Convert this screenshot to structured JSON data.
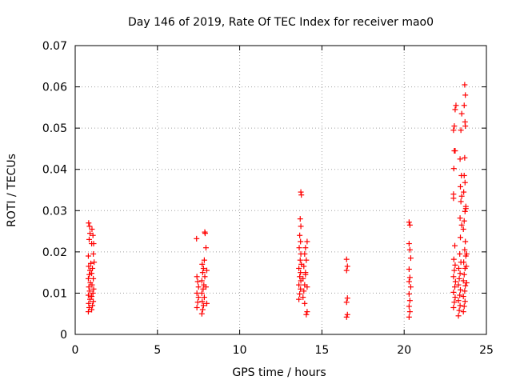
{
  "chart_data": {
    "type": "scatter",
    "title": "Day 146 of 2019, Rate Of TEC Index for receiver mao0",
    "xlabel": "GPS time / hours",
    "ylabel": "ROTI / TECUs",
    "xlim": [
      0,
      25
    ],
    "ylim": [
      0,
      0.07
    ],
    "xticks": [
      0,
      5,
      10,
      15,
      20,
      25
    ],
    "yticks": [
      0,
      0.01,
      0.02,
      0.03,
      0.04,
      0.05,
      0.06,
      0.07
    ],
    "xtick_labels": [
      "0",
      "5",
      "10",
      "15",
      "20",
      "25"
    ],
    "ytick_labels": [
      "0",
      "0.01",
      "0.02",
      "0.03",
      "0.04",
      "0.05",
      "0.06",
      "0.07"
    ],
    "grid": true,
    "marker": "+",
    "color": "#ff0000",
    "series": [
      {
        "name": "ROTI",
        "points": [
          [
            0.8,
            0.0055
          ],
          [
            0.85,
            0.0065
          ],
          [
            0.82,
            0.0075
          ],
          [
            0.9,
            0.0085
          ],
          [
            0.8,
            0.0095
          ],
          [
            0.88,
            0.0105
          ],
          [
            0.83,
            0.0115
          ],
          [
            0.92,
            0.0125
          ],
          [
            0.8,
            0.0135
          ],
          [
            0.86,
            0.0145
          ],
          [
            0.9,
            0.0155
          ],
          [
            0.82,
            0.0165
          ],
          [
            0.95,
            0.0172
          ],
          [
            0.8,
            0.019
          ],
          [
            0.85,
            0.023
          ],
          [
            0.9,
            0.0245
          ],
          [
            0.82,
            0.027
          ],
          [
            0.87,
            0.0262
          ],
          [
            1.0,
            0.006
          ],
          [
            1.05,
            0.007
          ],
          [
            1.1,
            0.008
          ],
          [
            1.0,
            0.0092
          ],
          [
            1.08,
            0.01
          ],
          [
            1.12,
            0.011
          ],
          [
            1.02,
            0.012
          ],
          [
            1.1,
            0.0135
          ],
          [
            1.0,
            0.0148
          ],
          [
            1.05,
            0.016
          ],
          [
            1.15,
            0.0175
          ],
          [
            1.1,
            0.0195
          ],
          [
            1.0,
            0.022
          ],
          [
            1.08,
            0.024
          ],
          [
            1.02,
            0.0255
          ],
          [
            1.12,
            0.022
          ],
          [
            7.4,
            0.0065
          ],
          [
            7.45,
            0.0078
          ],
          [
            7.5,
            0.009
          ],
          [
            7.4,
            0.01
          ],
          [
            7.5,
            0.0115
          ],
          [
            7.45,
            0.0128
          ],
          [
            7.4,
            0.014
          ],
          [
            7.38,
            0.0232
          ],
          [
            7.7,
            0.005
          ],
          [
            7.75,
            0.006
          ],
          [
            7.8,
            0.007
          ],
          [
            7.72,
            0.008
          ],
          [
            7.85,
            0.009
          ],
          [
            7.7,
            0.01
          ],
          [
            7.78,
            0.011
          ],
          [
            7.82,
            0.012
          ],
          [
            7.7,
            0.013
          ],
          [
            7.88,
            0.014
          ],
          [
            7.75,
            0.015
          ],
          [
            7.8,
            0.016
          ],
          [
            7.72,
            0.017
          ],
          [
            7.85,
            0.018
          ],
          [
            7.9,
            0.0245
          ],
          [
            7.88,
            0.0248
          ],
          [
            7.95,
            0.021
          ],
          [
            8.0,
            0.0075
          ],
          [
            7.95,
            0.0115
          ],
          [
            8.0,
            0.0155
          ],
          [
            13.6,
            0.0085
          ],
          [
            13.65,
            0.0098
          ],
          [
            13.7,
            0.011
          ],
          [
            13.6,
            0.012
          ],
          [
            13.72,
            0.013
          ],
          [
            13.65,
            0.014
          ],
          [
            13.7,
            0.015
          ],
          [
            13.6,
            0.016
          ],
          [
            13.75,
            0.017
          ],
          [
            13.68,
            0.018
          ],
          [
            13.72,
            0.0195
          ],
          [
            13.62,
            0.021
          ],
          [
            13.7,
            0.0225
          ],
          [
            13.65,
            0.024
          ],
          [
            13.72,
            0.0262
          ],
          [
            13.68,
            0.028
          ],
          [
            13.75,
            0.0338
          ],
          [
            13.72,
            0.0345
          ],
          [
            13.85,
            0.009
          ],
          [
            13.9,
            0.0105
          ],
          [
            13.95,
            0.012
          ],
          [
            13.85,
            0.0135
          ],
          [
            14.0,
            0.015
          ],
          [
            13.9,
            0.0165
          ],
          [
            14.05,
            0.018
          ],
          [
            13.95,
            0.0195
          ],
          [
            14.0,
            0.021
          ],
          [
            14.1,
            0.0225
          ],
          [
            14.05,
            0.0048
          ],
          [
            14.1,
            0.0055
          ],
          [
            13.95,
            0.0075
          ],
          [
            14.1,
            0.0115
          ],
          [
            14.0,
            0.0145
          ],
          [
            16.5,
            0.0042
          ],
          [
            16.55,
            0.0048
          ],
          [
            16.5,
            0.0078
          ],
          [
            16.55,
            0.0088
          ],
          [
            16.5,
            0.0155
          ],
          [
            16.55,
            0.0165
          ],
          [
            16.5,
            0.0182
          ],
          [
            20.3,
            0.0042
          ],
          [
            20.35,
            0.0055
          ],
          [
            20.3,
            0.0068
          ],
          [
            20.35,
            0.0082
          ],
          [
            20.3,
            0.0098
          ],
          [
            20.4,
            0.0115
          ],
          [
            20.3,
            0.0128
          ],
          [
            20.35,
            0.0138
          ],
          [
            20.3,
            0.0158
          ],
          [
            20.4,
            0.0185
          ],
          [
            20.35,
            0.0205
          ],
          [
            20.3,
            0.022
          ],
          [
            20.35,
            0.0265
          ],
          [
            20.3,
            0.0272
          ],
          [
            23.0,
            0.0065
          ],
          [
            23.05,
            0.0078
          ],
          [
            23.1,
            0.009
          ],
          [
            23.0,
            0.0102
          ],
          [
            23.08,
            0.0115
          ],
          [
            23.12,
            0.0128
          ],
          [
            23.0,
            0.014
          ],
          [
            23.05,
            0.0155
          ],
          [
            23.1,
            0.0168
          ],
          [
            23.02,
            0.0182
          ],
          [
            23.08,
            0.0215
          ],
          [
            23.0,
            0.034
          ],
          [
            23.05,
            0.0445
          ],
          [
            23.1,
            0.0445
          ],
          [
            23.0,
            0.0495
          ],
          [
            23.05,
            0.0505
          ],
          [
            23.1,
            0.0545
          ],
          [
            23.15,
            0.0555
          ],
          [
            23.02,
            0.0402
          ],
          [
            23.0,
            0.033
          ],
          [
            23.3,
            0.0045
          ],
          [
            23.35,
            0.0058
          ],
          [
            23.4,
            0.007
          ],
          [
            23.3,
            0.0082
          ],
          [
            23.38,
            0.0095
          ],
          [
            23.42,
            0.0108
          ],
          [
            23.3,
            0.012
          ],
          [
            23.35,
            0.0135
          ],
          [
            23.4,
            0.0148
          ],
          [
            23.32,
            0.016
          ],
          [
            23.45,
            0.0175
          ],
          [
            23.38,
            0.0195
          ],
          [
            23.42,
            0.0235
          ],
          [
            23.5,
            0.0265
          ],
          [
            23.4,
            0.0282
          ],
          [
            23.45,
            0.0322
          ],
          [
            23.5,
            0.0335
          ],
          [
            23.42,
            0.0358
          ],
          [
            23.48,
            0.0385
          ],
          [
            23.4,
            0.0425
          ],
          [
            23.45,
            0.0495
          ],
          [
            23.5,
            0.0535
          ],
          [
            23.6,
            0.0055
          ],
          [
            23.65,
            0.0068
          ],
          [
            23.7,
            0.008
          ],
          [
            23.6,
            0.0092
          ],
          [
            23.68,
            0.0105
          ],
          [
            23.72,
            0.0118
          ],
          [
            23.6,
            0.013
          ],
          [
            23.65,
            0.0145
          ],
          [
            23.7,
            0.016
          ],
          [
            23.62,
            0.0175
          ],
          [
            23.75,
            0.019
          ],
          [
            23.68,
            0.0205
          ],
          [
            23.72,
            0.0225
          ],
          [
            23.6,
            0.0255
          ],
          [
            23.65,
            0.0275
          ],
          [
            23.7,
            0.0298
          ],
          [
            23.75,
            0.031
          ],
          [
            23.62,
            0.0345
          ],
          [
            23.7,
            0.0368
          ],
          [
            23.65,
            0.0385
          ],
          [
            23.68,
            0.0428
          ],
          [
            23.72,
            0.0505
          ],
          [
            23.7,
            0.0515
          ],
          [
            23.65,
            0.0555
          ],
          [
            23.72,
            0.058
          ],
          [
            23.68,
            0.0605
          ],
          [
            23.75,
            0.0305
          ],
          [
            23.8,
            0.0195
          ],
          [
            23.78,
            0.0165
          ],
          [
            23.8,
            0.0125
          ]
        ]
      }
    ]
  }
}
